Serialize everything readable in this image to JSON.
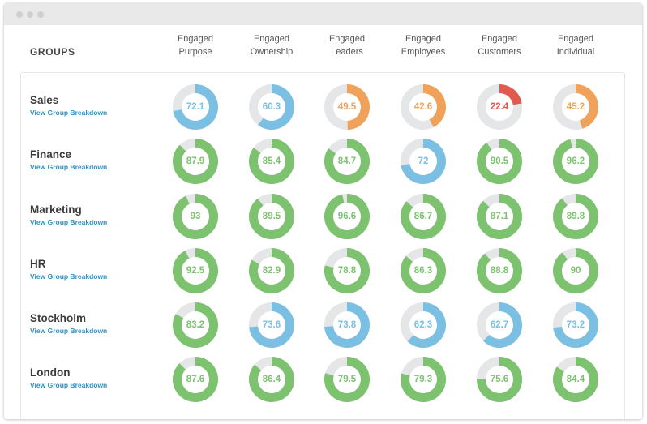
{
  "window": {
    "controls": [
      "close",
      "minimize",
      "maximize"
    ]
  },
  "header": {
    "groups_label": "GROUPS",
    "columns": [
      {
        "line1": "Engaged",
        "line2": "Purpose"
      },
      {
        "line1": "Engaged",
        "line2": "Ownership"
      },
      {
        "line1": "Engaged",
        "line2": "Leaders"
      },
      {
        "line1": "Engaged",
        "line2": "Employees"
      },
      {
        "line1": "Engaged",
        "line2": "Customers"
      },
      {
        "line1": "Engaged",
        "line2": "Individual"
      }
    ]
  },
  "colors": {
    "green": "#7cc26f",
    "blue": "#7bbfe3",
    "orange": "#f0a25a",
    "red": "#e05a4f",
    "track": "#e5e6e8",
    "link": "#2e8fc2"
  },
  "link_label": "View Group Breakdown",
  "rows": [
    {
      "name": "Sales",
      "values": [
        {
          "value": 72.1,
          "label": "72.1",
          "status": "blue"
        },
        {
          "value": 60.3,
          "label": "60.3",
          "status": "blue"
        },
        {
          "value": 49.5,
          "label": "49.5",
          "status": "orange"
        },
        {
          "value": 42.6,
          "label": "42.6",
          "status": "orange"
        },
        {
          "value": 22.4,
          "label": "22.4",
          "status": "red"
        },
        {
          "value": 45.2,
          "label": "45.2",
          "status": "orange"
        }
      ]
    },
    {
      "name": "Finance",
      "values": [
        {
          "value": 87.9,
          "label": "87.9",
          "status": "green"
        },
        {
          "value": 85.4,
          "label": "85.4",
          "status": "green"
        },
        {
          "value": 84.7,
          "label": "84.7",
          "status": "green"
        },
        {
          "value": 72,
          "label": "72",
          "status": "blue"
        },
        {
          "value": 90.5,
          "label": "90.5",
          "status": "green"
        },
        {
          "value": 96.2,
          "label": "96.2",
          "status": "green"
        }
      ]
    },
    {
      "name": "Marketing",
      "values": [
        {
          "value": 93,
          "label": "93",
          "status": "green"
        },
        {
          "value": 89.5,
          "label": "89.5",
          "status": "green"
        },
        {
          "value": 96.6,
          "label": "96.6",
          "status": "green"
        },
        {
          "value": 86.7,
          "label": "86.7",
          "status": "green"
        },
        {
          "value": 87.1,
          "label": "87.1",
          "status": "green"
        },
        {
          "value": 89.8,
          "label": "89.8",
          "status": "green"
        }
      ]
    },
    {
      "name": "HR",
      "values": [
        {
          "value": 92.5,
          "label": "92.5",
          "status": "green"
        },
        {
          "value": 82.9,
          "label": "82.9",
          "status": "green"
        },
        {
          "value": 78.8,
          "label": "78.8",
          "status": "green"
        },
        {
          "value": 86.3,
          "label": "86.3",
          "status": "green"
        },
        {
          "value": 88.8,
          "label": "88.8",
          "status": "green"
        },
        {
          "value": 90,
          "label": "90",
          "status": "green"
        }
      ]
    },
    {
      "name": "Stockholm",
      "values": [
        {
          "value": 83.2,
          "label": "83.2",
          "status": "green"
        },
        {
          "value": 73.6,
          "label": "73.6",
          "status": "blue"
        },
        {
          "value": 73.8,
          "label": "73.8",
          "status": "blue"
        },
        {
          "value": 62.3,
          "label": "62.3",
          "status": "blue"
        },
        {
          "value": 62.7,
          "label": "62.7",
          "status": "blue"
        },
        {
          "value": 73.2,
          "label": "73.2",
          "status": "blue"
        }
      ]
    },
    {
      "name": "London",
      "values": [
        {
          "value": 87.6,
          "label": "87.6",
          "status": "green"
        },
        {
          "value": 86.4,
          "label": "86.4",
          "status": "green"
        },
        {
          "value": 79.5,
          "label": "79.5",
          "status": "green"
        },
        {
          "value": 79.3,
          "label": "79.3",
          "status": "green"
        },
        {
          "value": 75.6,
          "label": "75.6",
          "status": "green"
        },
        {
          "value": 84.4,
          "label": "84.4",
          "status": "green"
        }
      ]
    }
  ]
}
